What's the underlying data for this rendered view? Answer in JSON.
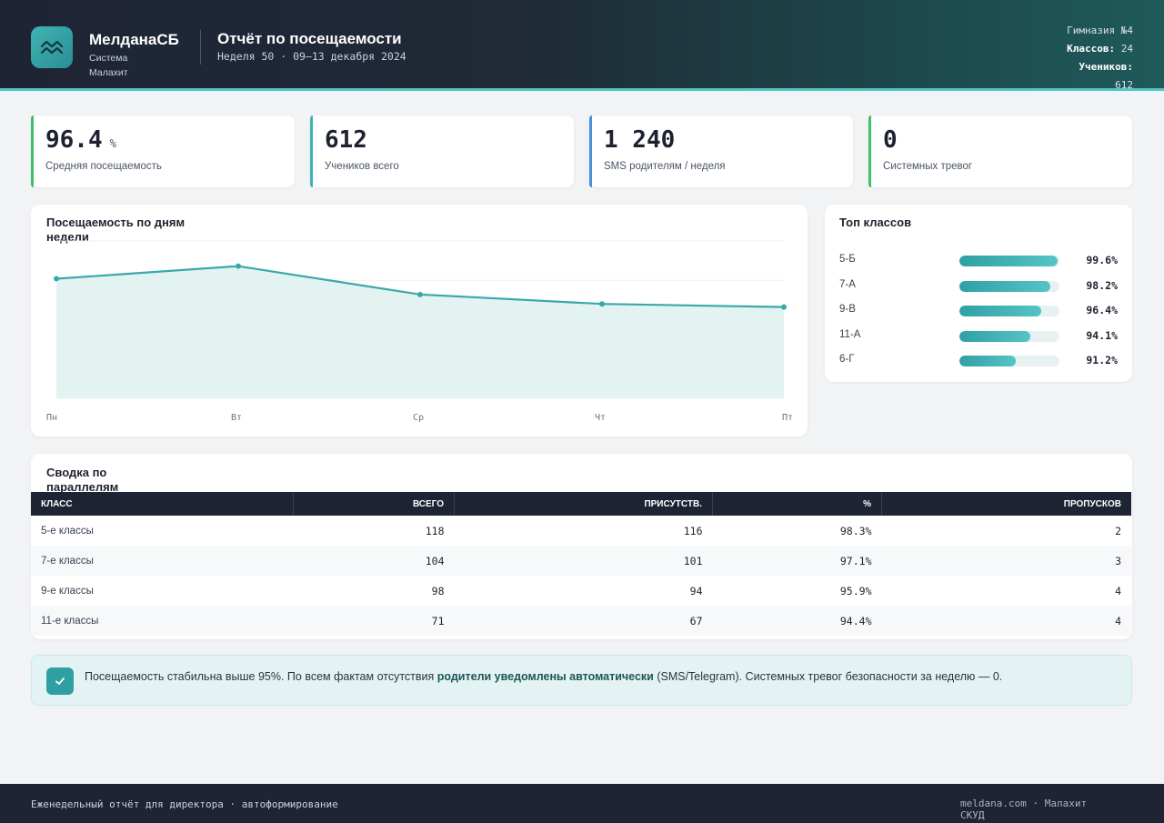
{
  "brand": {
    "name": "МелданаСБ",
    "sub": "Система Малахит"
  },
  "report": {
    "title": "Отчёт по посещаемости",
    "subtitle": "Неделя 50 · 09–13 декабря 2024"
  },
  "school": {
    "name": "Гимназия №4",
    "classes_label": "Классов:",
    "classes_value": "24",
    "students_label": "Учеников:",
    "students_value": "612"
  },
  "kpis": [
    {
      "value": "96.4",
      "unit": "%",
      "label": "Средняя посещаемость",
      "color": "#3fbf6a"
    },
    {
      "value": "612",
      "unit": "",
      "label": "Учеников всего",
      "color": "#3fb3b3"
    },
    {
      "value": "1 240",
      "unit": "",
      "label": "SMS родителям / неделя",
      "color": "#4a90d9"
    },
    {
      "value": "0",
      "unit": "",
      "label": "Системных тревог",
      "color": "#3fbf6a"
    }
  ],
  "weekly": {
    "title": "Посещаемость по дням недели",
    "color": "#3aa8aa"
  },
  "chart_data": {
    "type": "area",
    "title": "Посещаемость по дням недели",
    "categories": [
      "Пн",
      "Вт",
      "Ср",
      "Чт",
      "Пт"
    ],
    "values": [
      96.8,
      97.2,
      96.3,
      96.0,
      95.9
    ],
    "ylim": [
      93.0,
      98.0
    ],
    "grid": true
  },
  "top": {
    "title": "Топ классов",
    "items": [
      {
        "cls": "5-Б",
        "pct_text": "99.6%",
        "pct": 99.6
      },
      {
        "cls": "7-А",
        "pct_text": "98.2%",
        "pct": 98.2
      },
      {
        "cls": "9-В",
        "pct_text": "96.4%",
        "pct": 96.4
      },
      {
        "cls": "11-А",
        "pct_text": "94.1%",
        "pct": 94.1
      },
      {
        "cls": "6-Г",
        "pct_text": "91.2%",
        "pct": 91.2
      }
    ]
  },
  "summary": {
    "title": "Сводка по параллелям",
    "headers": [
      "КЛАСС",
      "ВСЕГО",
      "ПРИСУТСТВ.",
      "%",
      "ПРОПУСКОВ"
    ],
    "rows": [
      [
        "5-е классы",
        "118",
        "116",
        "98.3%",
        "2"
      ],
      [
        "7-е классы",
        "104",
        "101",
        "97.1%",
        "3"
      ],
      [
        "9-е классы",
        "98",
        "94",
        "95.9%",
        "4"
      ],
      [
        "11-е классы",
        "71",
        "67",
        "94.4%",
        "4"
      ]
    ]
  },
  "note": {
    "text_before": "Посещаемость стабильна выше 95%. По всем фактам отсутствия ",
    "text_bold": "родители уведомлены автоматически",
    "text_after": " (SMS/Telegram). Системных тревог безопасности за неделю — 0."
  },
  "footer": {
    "left": "Еженедельный отчёт для директора · автоформирование",
    "right": "meldana.com · Малахит СКУД"
  }
}
